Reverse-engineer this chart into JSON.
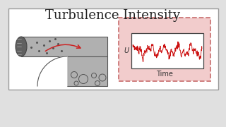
{
  "title": "Turbulence Intensity",
  "title_fontsize": 13,
  "bg_color": "#e0e0e0",
  "panel_bg": "#ffffff",
  "panel_border": "#888888",
  "pipe_gray": "#b0b0b0",
  "pipe_dark": "#606060",
  "arrow_color": "#cc2222",
  "plot_bg_color": "#f2cccc",
  "plot_border_color": "#cc7777",
  "inner_plot_bg": "#ffffff",
  "signal_color": "#cc1111",
  "time_label": "Time",
  "v_label": "U"
}
